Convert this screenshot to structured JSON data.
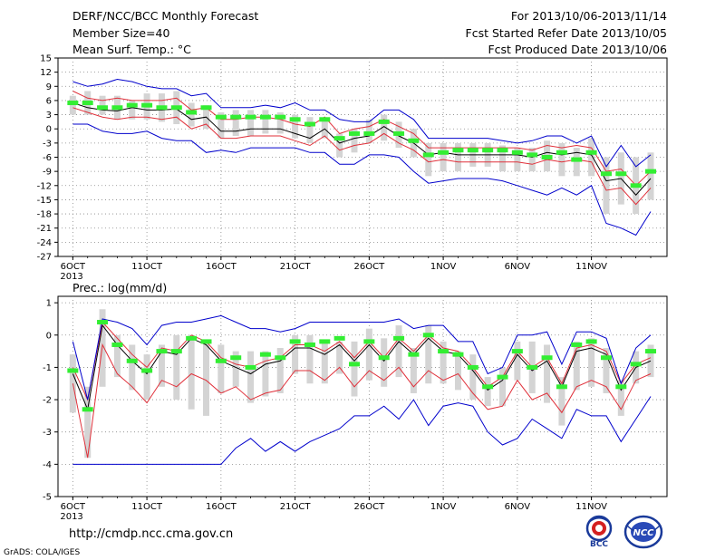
{
  "header": {
    "title": "DERF/NCC/BCC Monthly Forecast",
    "member_size": "Member Size=40",
    "variable": "Mean Surf. Temp.: °C",
    "period": "For 2013/10/06-2013/11/14",
    "fcst_started": "Fcst Started Refer Date 2013/10/05",
    "fcst_produced": "Fcst Produced Date 2013/10/06"
  },
  "footer": {
    "url": "http://cmdp.ncc.cma.gov.cn",
    "credit": "GrADS: COLA/IGES",
    "logo_bcc": "BCC",
    "logo_ncc": "NCC"
  },
  "colors": {
    "mean": "#000000",
    "spread": "#e0303a",
    "extreme": "#0000cc",
    "bar": "#d4d4d4",
    "marker": "#33ee33"
  },
  "chart_data": [
    {
      "type": "line",
      "title": "",
      "ylabel": "Mean Surf. Temp.: °C",
      "xlabel": "",
      "x_tick_labels": [
        "6OCT\n2013",
        "11OCT",
        "16OCT",
        "21OCT",
        "26OCT",
        "1NOV",
        "6NOV",
        "11NOV"
      ],
      "x_tick_days": [
        1,
        6,
        11,
        16,
        21,
        26,
        31,
        36
      ],
      "ylim": [
        -27,
        15
      ],
      "y_ticks": [
        15,
        12,
        9,
        6,
        3,
        0,
        -3,
        -6,
        -9,
        -12,
        -15,
        -18,
        -21,
        -24,
        -27
      ],
      "grid": true,
      "x_days": [
        1,
        2,
        3,
        4,
        5,
        6,
        7,
        8,
        9,
        10,
        11,
        12,
        13,
        14,
        15,
        16,
        17,
        18,
        19,
        20,
        21,
        22,
        23,
        24,
        25,
        26,
        27,
        28,
        29,
        30,
        31,
        32,
        33,
        34,
        35,
        36,
        37,
        38,
        39,
        40
      ],
      "series": [
        {
          "name": "",
          "role": "mean",
          "values": [
            5.5,
            4.5,
            4,
            3.8,
            4.5,
            4,
            4,
            4.2,
            2,
            2.5,
            -0.5,
            -0.5,
            0,
            0,
            0,
            -1,
            -2,
            0,
            -3,
            -2,
            -1.5,
            0.5,
            -1.5,
            -3,
            -5.5,
            -5,
            -5.5,
            -5.5,
            -5.5,
            -5.5,
            -5.5,
            -6,
            -5,
            -5.5,
            -5,
            -5.5,
            -11,
            -10.5,
            -14,
            -10.5
          ]
        },
        {
          "name": "",
          "role": "upper",
          "values": [
            8,
            6.5,
            6,
            6.5,
            6,
            6,
            6,
            6.5,
            4,
            4.5,
            2,
            2,
            2.5,
            2.5,
            2,
            1,
            0.5,
            2.5,
            -1,
            0,
            0.5,
            2,
            0.5,
            -1,
            -4,
            -4,
            -4,
            -4,
            -4,
            -4,
            -4,
            -4.5,
            -3.5,
            -4,
            -3.5,
            -4,
            -9,
            -8.5,
            -12,
            -9
          ]
        },
        {
          "name": "",
          "role": "lower",
          "values": [
            4.5,
            3.5,
            2.5,
            2,
            2.5,
            2.5,
            2,
            2.5,
            0,
            1,
            -2,
            -2,
            -1.5,
            -1.5,
            -1.5,
            -2.5,
            -3.5,
            -1.5,
            -4.5,
            -3.5,
            -3,
            -1,
            -3,
            -4.5,
            -7,
            -6.5,
            -7,
            -7,
            -7,
            -7,
            -7,
            -7.5,
            -6.5,
            -7,
            -6.5,
            -7,
            -13,
            -12.5,
            -16,
            -12.5
          ]
        },
        {
          "name": "",
          "role": "max",
          "values": [
            10,
            9,
            9.5,
            10.5,
            10,
            9,
            8.5,
            8.5,
            7,
            7.5,
            4.5,
            4.5,
            4.5,
            5,
            4.5,
            5.5,
            4,
            4,
            2,
            1.5,
            1.5,
            4,
            4,
            2,
            -2,
            -2,
            -2,
            -2,
            -2,
            -2.5,
            -3,
            -2.5,
            -1.5,
            -1.5,
            -3,
            -1.5,
            -8,
            -3.5,
            -8,
            -5.5
          ]
        },
        {
          "name": "",
          "role": "min",
          "values": [
            1,
            1,
            -0.5,
            -1,
            -1,
            -0.5,
            -2,
            -2.5,
            -2.5,
            -5,
            -4.5,
            -5,
            -4,
            -4,
            -4,
            -4,
            -5,
            -5,
            -7.5,
            -7.5,
            -5.5,
            -5.5,
            -6,
            -9,
            -11.5,
            -11,
            -10.5,
            -10.5,
            -10.5,
            -11,
            -12,
            -13,
            -14,
            -12.5,
            -14,
            -12,
            -20,
            -21,
            -22.5,
            -17.5
          ]
        },
        {
          "name": "",
          "role": "marker",
          "values": [
            5.5,
            5.5,
            4.5,
            4.5,
            5,
            5,
            4.5,
            4.5,
            3.5,
            4.5,
            2.5,
            2.5,
            2.5,
            2.5,
            2.5,
            2,
            1,
            2,
            -2,
            -1,
            -1,
            1.5,
            -1,
            -2.5,
            -5.5,
            -5,
            -4.5,
            -4.5,
            -4.5,
            -4.5,
            -5,
            -5.5,
            -6,
            -5,
            -6.5,
            -5,
            -9.5,
            -9.5,
            -12,
            -9
          ]
        }
      ],
      "bar_ranges": [
        [
          7,
          3
        ],
        [
          8,
          3
        ],
        [
          7,
          3
        ],
        [
          7,
          2
        ],
        [
          6,
          2
        ],
        [
          7.5,
          2
        ],
        [
          7.5,
          1.5
        ],
        [
          8,
          1
        ],
        [
          5.5,
          0.5
        ],
        [
          5,
          0
        ],
        [
          3.5,
          -2
        ],
        [
          4,
          -1.5
        ],
        [
          4,
          -1.5
        ],
        [
          4,
          -1
        ],
        [
          3.5,
          -1
        ],
        [
          3,
          -2
        ],
        [
          2.5,
          -3
        ],
        [
          2,
          -2
        ],
        [
          -1,
          -6
        ],
        [
          0,
          -5
        ],
        [
          2,
          -3
        ],
        [
          3,
          -2.5
        ],
        [
          1.5,
          -4
        ],
        [
          0,
          -6
        ],
        [
          -3,
          -10
        ],
        [
          -3,
          -9
        ],
        [
          -3,
          -9
        ],
        [
          -3,
          -8
        ],
        [
          -3,
          -8
        ],
        [
          -3.5,
          -9
        ],
        [
          -4,
          -9
        ],
        [
          -4,
          -9
        ],
        [
          -2.5,
          -9
        ],
        [
          -3,
          -10
        ],
        [
          -4,
          -10
        ],
        [
          -2,
          -10
        ],
        [
          -6,
          -18
        ],
        [
          -5,
          -16
        ],
        [
          -6,
          -18
        ],
        [
          -5,
          -15
        ]
      ]
    },
    {
      "type": "line",
      "title": "",
      "ylabel": "Prec.: log(mm/d)",
      "xlabel": "",
      "x_tick_labels": [
        "6OCT\n2013",
        "11OCT",
        "16OCT",
        "21OCT",
        "26OCT",
        "1NOV",
        "6NOV",
        "11NOV"
      ],
      "x_tick_days": [
        1,
        6,
        11,
        16,
        21,
        26,
        31,
        36
      ],
      "ylim": [
        -5,
        1.2
      ],
      "y_ticks": [
        1,
        0,
        -1,
        -2,
        -3,
        -4,
        -5
      ],
      "grid": true,
      "x_days": [
        1,
        2,
        3,
        4,
        5,
        6,
        7,
        8,
        9,
        10,
        11,
        12,
        13,
        14,
        15,
        16,
        17,
        18,
        19,
        20,
        21,
        22,
        23,
        24,
        25,
        26,
        27,
        28,
        29,
        30,
        31,
        32,
        33,
        34,
        35,
        36,
        37,
        38,
        39,
        40
      ],
      "series": [
        {
          "name": "",
          "role": "mean",
          "values": [
            -1.2,
            -2.3,
            0.3,
            -0.3,
            -0.8,
            -1.2,
            -0.5,
            -0.6,
            -0.1,
            -0.3,
            -0.8,
            -1,
            -1.2,
            -0.9,
            -0.8,
            -0.4,
            -0.4,
            -0.6,
            -0.3,
            -0.8,
            -0.3,
            -0.8,
            -0.2,
            -0.6,
            -0.1,
            -0.5,
            -0.6,
            -1.1,
            -1.7,
            -1.4,
            -0.6,
            -1.1,
            -0.8,
            -1.6,
            -0.5,
            -0.4,
            -0.6,
            -1.7,
            -1,
            -0.8
          ]
        },
        {
          "name": "",
          "role": "upper",
          "values": [
            -1,
            -2,
            0.4,
            -0.1,
            -0.6,
            -1,
            -0.4,
            -0.5,
            0,
            -0.2,
            -0.7,
            -0.9,
            -1,
            -0.8,
            -0.7,
            -0.3,
            -0.3,
            -0.5,
            -0.2,
            -0.7,
            -0.2,
            -0.7,
            -0.1,
            -0.5,
            0,
            -0.4,
            -0.5,
            -1,
            -1.6,
            -1.3,
            -0.5,
            -1,
            -0.7,
            -1.5,
            -0.4,
            -0.3,
            -0.5,
            -1.5,
            -0.9,
            -0.7
          ]
        },
        {
          "name": "",
          "role": "lower",
          "values": [
            -1.5,
            -3.8,
            -0.3,
            -1.2,
            -1.6,
            -2.1,
            -1.4,
            -1.6,
            -1.2,
            -1.4,
            -1.8,
            -1.6,
            -2,
            -1.8,
            -1.7,
            -1.1,
            -1.1,
            -1.4,
            -1,
            -1.6,
            -1.1,
            -1.4,
            -1,
            -1.6,
            -1.1,
            -1.4,
            -1.2,
            -1.8,
            -2.3,
            -2.2,
            -1.4,
            -2,
            -1.8,
            -2.4,
            -1.6,
            -1.4,
            -1.6,
            -2.3,
            -1.4,
            -1.2
          ]
        },
        {
          "name": "",
          "role": "max",
          "values": [
            -0.2,
            -2,
            0.5,
            0.4,
            0.2,
            -0.3,
            0.3,
            0.4,
            0.4,
            0.5,
            0.6,
            0.4,
            0.2,
            0.2,
            0.1,
            0.2,
            0.4,
            0.4,
            0.4,
            0.4,
            0.4,
            0.4,
            0.5,
            0.2,
            0.3,
            0.3,
            -0.2,
            -0.2,
            -1.2,
            -1,
            0,
            0,
            0.1,
            -0.9,
            0.1,
            0.1,
            -0.1,
            -1.5,
            -0.4,
            0
          ]
        },
        {
          "name": "",
          "role": "min",
          "values": [
            -4,
            -4,
            -4,
            -4,
            -4,
            -4,
            -4,
            -4,
            -4,
            -4,
            -4,
            -3.5,
            -3.2,
            -3.6,
            -3.3,
            -3.6,
            -3.3,
            -3.1,
            -2.9,
            -2.5,
            -2.5,
            -2.2,
            -2.6,
            -2,
            -2.8,
            -2.2,
            -2.1,
            -2.2,
            -3,
            -3.4,
            -3.2,
            -2.6,
            -2.9,
            -3.2,
            -2.3,
            -2.5,
            -2.5,
            -3.3,
            -2.6,
            -1.9
          ]
        },
        {
          "name": "",
          "role": "marker",
          "values": [
            -1.1,
            -2.3,
            0.4,
            -0.3,
            -0.8,
            -1.1,
            -0.5,
            -0.5,
            -0.1,
            -0.2,
            -0.8,
            -0.7,
            -1,
            -0.6,
            -0.7,
            -0.2,
            -0.3,
            -0.2,
            -0.1,
            -0.9,
            -0.2,
            -0.7,
            -0.1,
            -0.6,
            0,
            -0.5,
            -0.6,
            -1,
            -1.6,
            -1.3,
            -0.5,
            -1,
            -0.7,
            -1.6,
            -0.3,
            -0.2,
            -0.7,
            -1.6,
            -0.9,
            -0.5
          ]
        }
      ],
      "bar_ranges": [
        [
          -0.6,
          -2.4
        ],
        [
          -1.6,
          -3.8
        ],
        [
          0.8,
          -1.6
        ],
        [
          0,
          -1.3
        ],
        [
          -0.3,
          -1.7
        ],
        [
          -0.6,
          -2
        ],
        [
          -0.3,
          -1.6
        ],
        [
          0,
          -2
        ],
        [
          0,
          -2.3
        ],
        [
          -0.2,
          -2.5
        ],
        [
          -0.3,
          -1.8
        ],
        [
          -0.5,
          -1.6
        ],
        [
          -0.5,
          -2.1
        ],
        [
          -0.5,
          -1.9
        ],
        [
          -0.4,
          -1.8
        ],
        [
          0,
          -1.2
        ],
        [
          0,
          -1.5
        ],
        [
          -0.2,
          -1.5
        ],
        [
          -0.2,
          -1.2
        ],
        [
          -0.2,
          -1.9
        ],
        [
          0.2,
          -1.4
        ],
        [
          -0.1,
          -1.6
        ],
        [
          0.3,
          -1.3
        ],
        [
          -0.4,
          -1.8
        ],
        [
          0.3,
          -1.5
        ],
        [
          -0.2,
          -1.5
        ],
        [
          -0.5,
          -1.7
        ],
        [
          -0.6,
          -2
        ],
        [
          -1.3,
          -2.2
        ],
        [
          -1,
          -2.2
        ],
        [
          -0.2,
          -1.4
        ],
        [
          -0.2,
          -1.8
        ],
        [
          -0.3,
          -2.1
        ],
        [
          -1.3,
          -2.8
        ],
        [
          -0.2,
          -1.7
        ],
        [
          -0.1,
          -1.6
        ],
        [
          -0.4,
          -1.8
        ],
        [
          -1.4,
          -2.5
        ],
        [
          -0.5,
          -1.5
        ],
        [
          -0.3,
          -1.3
        ]
      ]
    }
  ]
}
